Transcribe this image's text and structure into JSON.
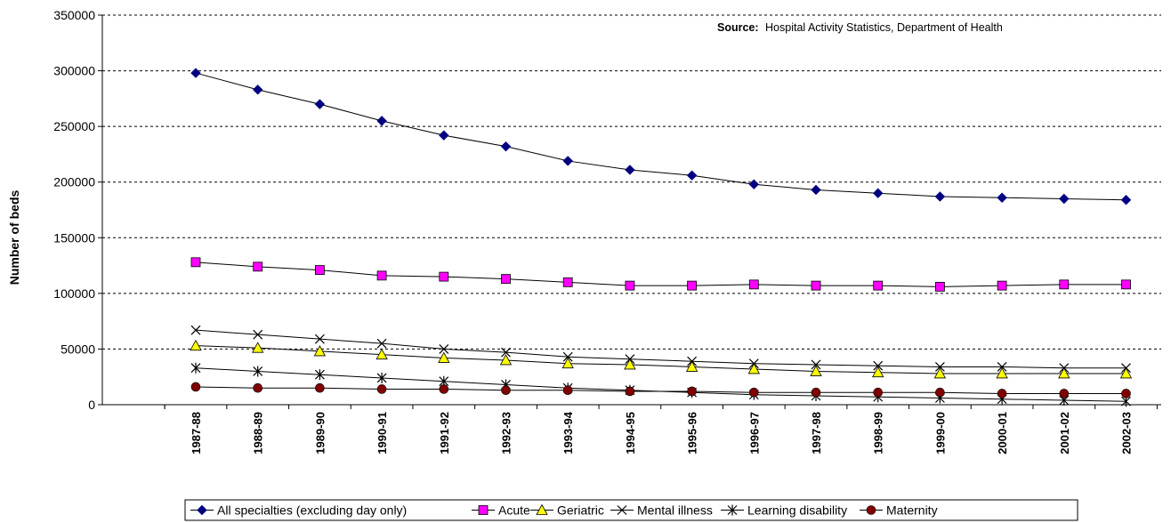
{
  "chart_data": {
    "type": "line",
    "title": "",
    "xlabel": "",
    "ylabel": "Number of beds",
    "source_label": "Source:",
    "source_text": "Hospital Activity Statistics, Department of Health",
    "ylim": [
      0,
      350000
    ],
    "yticks": [
      "0",
      "50000",
      "100000",
      "150000",
      "200000",
      "250000",
      "300000",
      "350000"
    ],
    "grid": true,
    "legend_position": "bottom",
    "categories": [
      "1987-88",
      "1988-89",
      "1989-90",
      "1990-91",
      "1991-92",
      "1992-93",
      "1993-94",
      "1994-95",
      "1995-96",
      "1996-97",
      "1997-98",
      "1998-99",
      "1999-00",
      "2000-01",
      "2001-02",
      "2002-03"
    ],
    "series": [
      {
        "name": "All specialties (excluding day only)",
        "color": "#000080",
        "marker": "diamond",
        "values": [
          298000,
          283000,
          270000,
          255000,
          242000,
          232000,
          219000,
          211000,
          206000,
          198000,
          193000,
          190000,
          187000,
          186000,
          185000,
          184000
        ]
      },
      {
        "name": "Acute",
        "color": "#ff00ff",
        "marker": "square",
        "values": [
          128000,
          124000,
          121000,
          116000,
          115000,
          113000,
          110000,
          107000,
          107000,
          108000,
          107000,
          107000,
          106000,
          107000,
          108000,
          108000
        ]
      },
      {
        "name": "Geriatric",
        "color": "#ffff00",
        "marker": "triangle",
        "values": [
          53000,
          51000,
          48000,
          45000,
          42000,
          40000,
          37000,
          36000,
          34000,
          32000,
          30000,
          29000,
          28000,
          28000,
          28000,
          28000
        ]
      },
      {
        "name": "Mental illness",
        "color": "#000000",
        "marker": "x",
        "values": [
          67000,
          63000,
          59000,
          55000,
          50000,
          47000,
          43000,
          41000,
          39000,
          37000,
          36000,
          35000,
          34000,
          34000,
          33000,
          33000
        ]
      },
      {
        "name": "Learning disability",
        "color": "#000000",
        "marker": "star",
        "values": [
          33000,
          30000,
          27000,
          24000,
          21000,
          18000,
          15000,
          13000,
          11000,
          9000,
          8000,
          7000,
          6000,
          5000,
          4000,
          3000
        ]
      },
      {
        "name": "Maternity",
        "color": "#800000",
        "marker": "circle",
        "values": [
          16000,
          15000,
          15000,
          14000,
          14000,
          13000,
          13000,
          12000,
          12000,
          11000,
          11000,
          11000,
          11000,
          10000,
          10000,
          10000
        ]
      }
    ]
  }
}
